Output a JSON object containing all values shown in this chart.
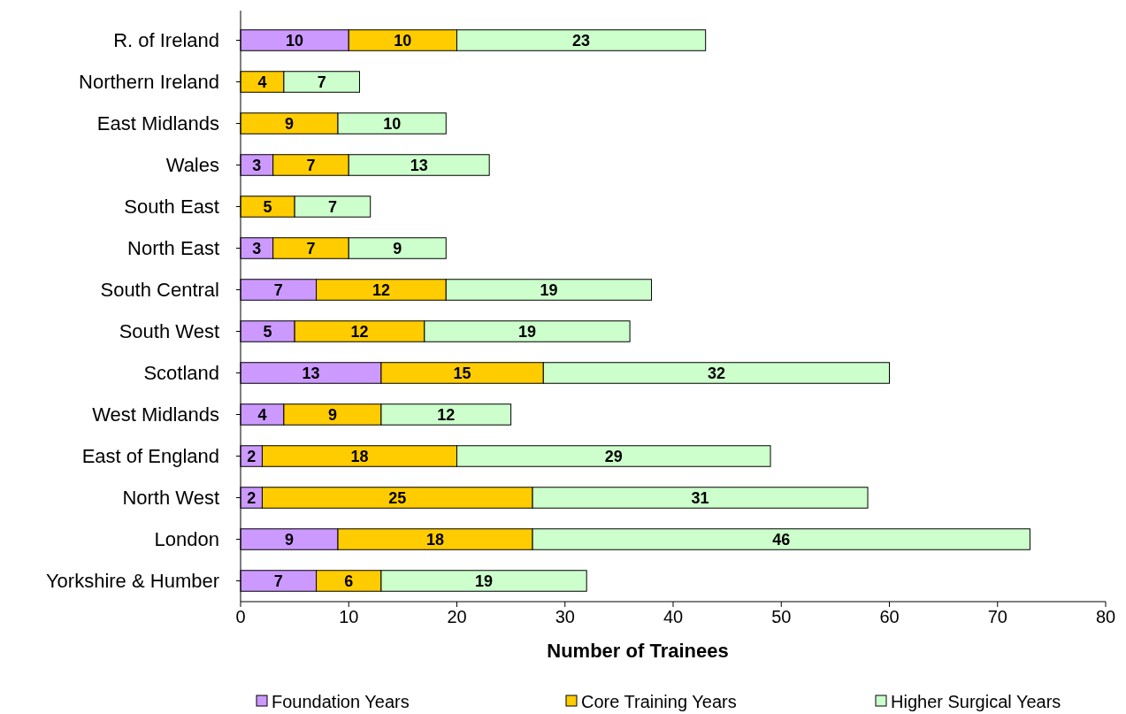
{
  "chart_data": {
    "type": "bar",
    "orientation": "horizontal",
    "stacked": true,
    "xlabel": "Number of Trainees",
    "categories": [
      "R. of Ireland",
      "Northern Ireland",
      "East Midlands",
      "Wales",
      "South East",
      "North East",
      "South Central",
      "South West",
      "Scotland",
      "West Midlands",
      "East of England",
      "North West",
      "London",
      "Yorkshire & Humber"
    ],
    "series": [
      {
        "name": "Foundation Years",
        "color": "#cc99ff",
        "values": [
          10,
          null,
          null,
          3,
          null,
          3,
          7,
          5,
          13,
          4,
          2,
          2,
          9,
          7
        ]
      },
      {
        "name": "Core Training Years",
        "color": "#ffcc00",
        "values": [
          10,
          4,
          9,
          7,
          5,
          7,
          12,
          12,
          15,
          9,
          18,
          25,
          18,
          6
        ]
      },
      {
        "name": "Higher Surgical Years",
        "color": "#ccffcc",
        "values": [
          23,
          7,
          10,
          13,
          7,
          9,
          19,
          19,
          32,
          12,
          29,
          31,
          46,
          19
        ]
      }
    ],
    "xlim": [
      0,
      80
    ],
    "xticks": [
      0,
      10,
      20,
      30,
      40,
      50,
      60,
      70,
      80
    ],
    "data_labels": true,
    "grid": false,
    "legend": "bottom"
  }
}
